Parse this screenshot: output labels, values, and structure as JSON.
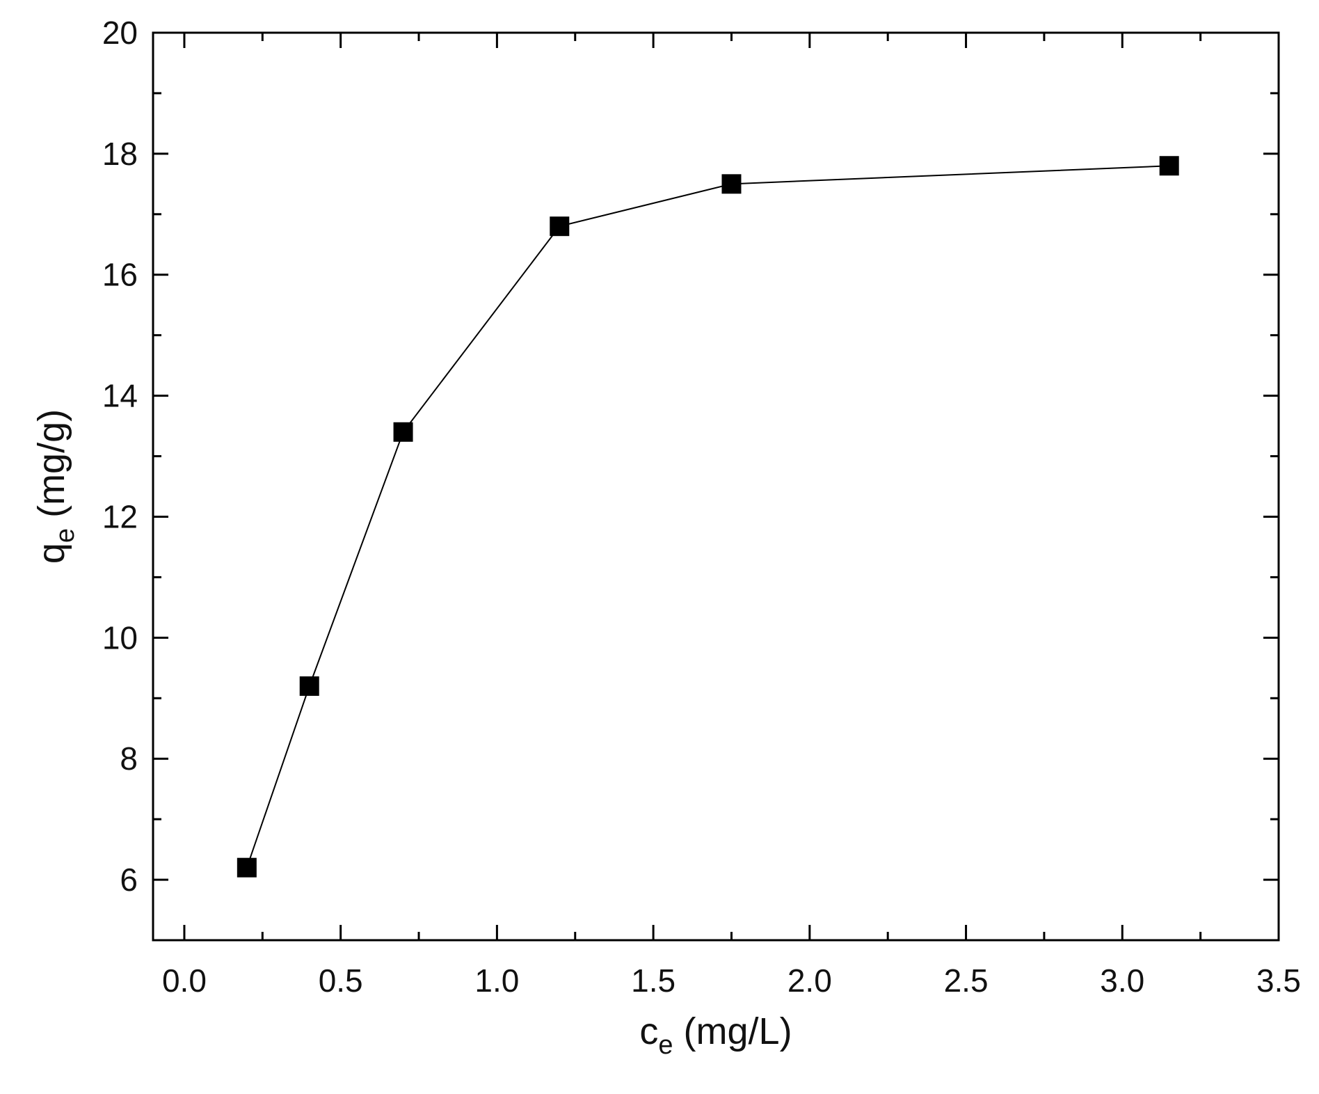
{
  "chart_data": {
    "type": "line",
    "title": "",
    "xlabel": {
      "base": "c",
      "sub": "e",
      "unit": " (mg/L)"
    },
    "ylabel": {
      "base": "q",
      "sub": "e",
      "unit": " (mg/g)"
    },
    "xlim": [
      -0.1,
      3.5
    ],
    "ylim": [
      5,
      20
    ],
    "x_ticks": [
      0.0,
      0.5,
      1.0,
      1.5,
      2.0,
      2.5,
      3.0,
      3.5
    ],
    "x_tick_labels": [
      "0.0",
      "0.5",
      "1.0",
      "1.5",
      "2.0",
      "2.5",
      "3.0",
      "3.5"
    ],
    "y_ticks": [
      6,
      8,
      10,
      12,
      14,
      16,
      18,
      20
    ],
    "y_tick_labels": [
      "6",
      "8",
      "10",
      "12",
      "14",
      "16",
      "18",
      "20"
    ],
    "grid": false,
    "legend": "none",
    "marker": "square",
    "series": [
      {
        "x": [
          0.2,
          0.4,
          0.7,
          1.2,
          1.75,
          3.15
        ],
        "y": [
          6.2,
          9.2,
          13.4,
          16.8,
          17.5,
          17.8
        ],
        "color": "#000000"
      }
    ]
  }
}
